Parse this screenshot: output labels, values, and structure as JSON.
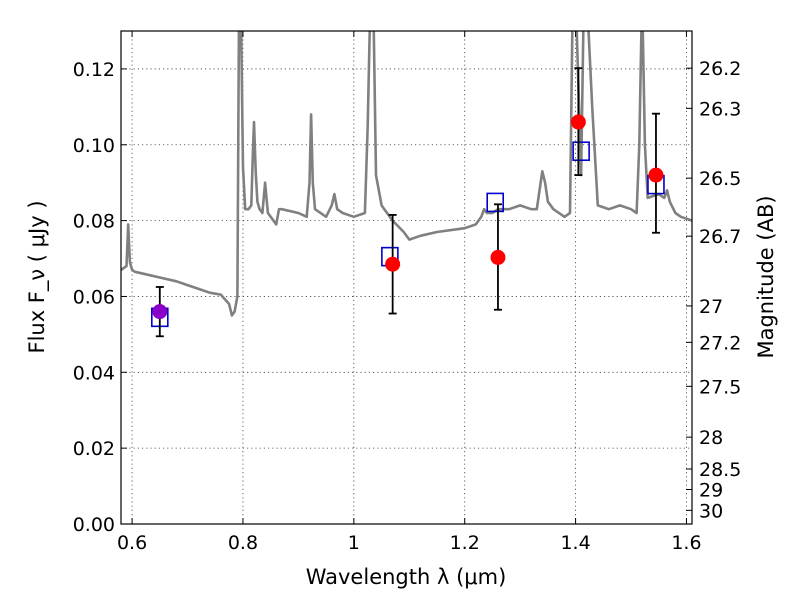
{
  "chart_data": {
    "type": "scatter",
    "title": "",
    "xlabel": "Wavelength  λ (μm)",
    "ylabel": "Flux  F_ν  ( μJy )",
    "y2label": "Magnitude (AB)",
    "xlim": [
      0.58,
      1.61
    ],
    "ylim": [
      0.0,
      0.13
    ],
    "x_ticks": [
      0.6,
      0.8,
      1.0,
      1.2,
      1.4,
      1.6
    ],
    "x_tick_labels": [
      "0.6",
      "0.8",
      "1",
      "1.2",
      "1.4",
      "1.6"
    ],
    "y_ticks": [
      0.0,
      0.02,
      0.04,
      0.06,
      0.08,
      0.1,
      0.12
    ],
    "y_tick_labels": [
      "0.00",
      "0.02",
      "0.04",
      "0.06",
      "0.08",
      "0.10",
      "0.12"
    ],
    "y2_ticks": [
      {
        "label": "26.2",
        "flux": 0.1202
      },
      {
        "label": "26.3",
        "flux": 0.1096
      },
      {
        "label": "26.5",
        "flux": 0.0912
      },
      {
        "label": "26.7",
        "flux": 0.0759
      },
      {
        "label": "27",
        "flux": 0.0575
      },
      {
        "label": "27.2",
        "flux": 0.0479
      },
      {
        "label": "27.5",
        "flux": 0.0363
      },
      {
        "label": "28",
        "flux": 0.0229
      },
      {
        "label": "28.5",
        "flux": 0.0145
      },
      {
        "label": "29",
        "flux": 0.0091
      },
      {
        "label": "30",
        "flux": 0.0036
      }
    ],
    "grid": true,
    "series": [
      {
        "name": "",
        "kind": "observed",
        "color": "#ff0000",
        "points": [
          {
            "x": 0.65,
            "y": 0.056,
            "err_low": 0.0495,
            "err_high": 0.0625
          },
          {
            "x": 1.07,
            "y": 0.0685,
            "err_low": 0.0555,
            "err_high": 0.0815
          },
          {
            "x": 1.26,
            "y": 0.0703,
            "err_low": 0.0565,
            "err_high": 0.0843
          },
          {
            "x": 1.405,
            "y": 0.106,
            "err_low": 0.092,
            "err_high": 0.1202
          },
          {
            "x": 1.545,
            "y": 0.092,
            "err_low": 0.0768,
            "err_high": 0.1082
          }
        ]
      },
      {
        "name": "",
        "kind": "model-photometry",
        "color": "#0000cc",
        "points": [
          {
            "x": 0.65,
            "y": 0.0545
          },
          {
            "x": 1.065,
            "y": 0.0705
          },
          {
            "x": 1.255,
            "y": 0.0848
          },
          {
            "x": 1.41,
            "y": 0.0983
          },
          {
            "x": 1.545,
            "y": 0.0895
          }
        ]
      },
      {
        "name": "",
        "kind": "spectrum",
        "color": "#808080",
        "x": [
          0.58,
          0.585,
          0.59,
          0.593,
          0.596,
          0.6,
          0.605,
          0.62,
          0.65,
          0.68,
          0.7,
          0.72,
          0.74,
          0.76,
          0.775,
          0.78,
          0.785,
          0.79,
          0.793,
          0.796,
          0.8,
          0.804,
          0.81,
          0.815,
          0.818,
          0.82,
          0.823,
          0.826,
          0.83,
          0.835,
          0.84,
          0.845,
          0.85,
          0.855,
          0.86,
          0.865,
          0.87,
          0.9,
          0.915,
          0.92,
          0.923,
          0.926,
          0.93,
          0.95,
          0.96,
          0.965,
          0.97,
          0.98,
          1.0,
          1.02,
          1.025,
          1.03,
          1.035,
          1.04,
          1.05,
          1.055,
          1.06,
          1.07,
          1.09,
          1.1,
          1.12,
          1.15,
          1.2,
          1.22,
          1.23,
          1.235,
          1.24,
          1.25,
          1.26,
          1.28,
          1.3,
          1.32,
          1.33,
          1.34,
          1.345,
          1.35,
          1.36,
          1.38,
          1.39,
          1.395,
          1.4,
          1.41,
          1.415,
          1.42,
          1.43,
          1.44,
          1.46,
          1.48,
          1.5,
          1.51,
          1.515,
          1.52,
          1.525,
          1.53,
          1.55,
          1.56,
          1.565,
          1.57,
          1.58,
          1.59,
          1.6,
          1.61
        ],
        "y": [
          0.067,
          0.0675,
          0.068,
          0.079,
          0.069,
          0.067,
          0.0665,
          0.066,
          0.065,
          0.064,
          0.063,
          0.062,
          0.061,
          0.0605,
          0.058,
          0.055,
          0.056,
          0.06,
          0.14,
          0.14,
          0.094,
          0.083,
          0.083,
          0.084,
          0.098,
          0.106,
          0.093,
          0.085,
          0.083,
          0.082,
          0.09,
          0.082,
          0.081,
          0.08,
          0.079,
          0.083,
          0.083,
          0.082,
          0.081,
          0.09,
          0.108,
          0.09,
          0.083,
          0.081,
          0.084,
          0.087,
          0.083,
          0.082,
          0.081,
          0.082,
          0.105,
          0.14,
          0.14,
          0.092,
          0.084,
          0.083,
          0.082,
          0.08,
          0.077,
          0.075,
          0.076,
          0.077,
          0.078,
          0.079,
          0.081,
          0.083,
          0.082,
          0.082,
          0.083,
          0.083,
          0.084,
          0.083,
          0.083,
          0.093,
          0.09,
          0.085,
          0.083,
          0.081,
          0.082,
          0.14,
          0.14,
          0.092,
          0.14,
          0.14,
          0.11,
          0.084,
          0.083,
          0.084,
          0.083,
          0.082,
          0.1,
          0.14,
          0.1,
          0.086,
          0.087,
          0.086,
          0.088,
          0.085,
          0.082,
          0.081,
          0.0805,
          0.08
        ]
      }
    ]
  }
}
